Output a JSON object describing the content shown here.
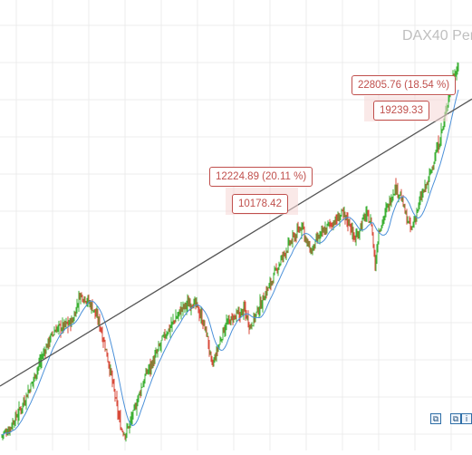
{
  "watermark": "DAX40 Per",
  "chart_data": {
    "type": "line",
    "title": "",
    "xlabel": "",
    "ylabel": "",
    "grid": true,
    "ylim": [
      7000,
      24500
    ],
    "annotations": [
      {
        "text": "12224.89 (20.11 %)",
        "value": 12224.89,
        "pct": 20.11
      },
      {
        "text": "10178.42",
        "value": 10178.42
      },
      {
        "text": "22805.76 (18.54 %)",
        "value": 22805.76,
        "pct": 18.54
      },
      {
        "text": "19239.33",
        "value": 19239.33
      }
    ],
    "trendline": {
      "start": 9500,
      "end": 21500
    },
    "series": [
      {
        "type": "ohlc-ticks",
        "color_up": "#3cb034",
        "color_down": "#d84a3a"
      },
      {
        "type": "moving-average",
        "color": "#4a90d9"
      }
    ],
    "path": [
      [
        0,
        7400
      ],
      [
        10,
        7700
      ],
      [
        22,
        8500
      ],
      [
        34,
        9500
      ],
      [
        44,
        10500
      ],
      [
        54,
        11400
      ],
      [
        62,
        11900
      ],
      [
        70,
        12000
      ],
      [
        80,
        12200
      ],
      [
        88,
        13300
      ],
      [
        94,
        13200
      ],
      [
        102,
        12800
      ],
      [
        110,
        12100
      ],
      [
        117,
        11000
      ],
      [
        124,
        9700
      ],
      [
        130,
        8400
      ],
      [
        134,
        7700
      ],
      [
        138,
        7500
      ],
      [
        146,
        8200
      ],
      [
        154,
        9200
      ],
      [
        162,
        10100
      ],
      [
        170,
        10600
      ],
      [
        180,
        11500
      ],
      [
        190,
        12100
      ],
      [
        200,
        12700
      ],
      [
        210,
        13000
      ],
      [
        216,
        12900
      ],
      [
        222,
        12400
      ],
      [
        228,
        11700
      ],
      [
        234,
        10300
      ],
      [
        240,
        11000
      ],
      [
        248,
        12000
      ],
      [
        256,
        12300
      ],
      [
        264,
        12500
      ],
      [
        270,
        12700
      ],
      [
        276,
        12000
      ],
      [
        284,
        12600
      ],
      [
        292,
        13300
      ],
      [
        300,
        13900
      ],
      [
        308,
        14600
      ],
      [
        316,
        15200
      ],
      [
        324,
        15700
      ],
      [
        330,
        16000
      ],
      [
        334,
        16300
      ],
      [
        338,
        15500
      ],
      [
        344,
        15100
      ],
      [
        350,
        15600
      ],
      [
        356,
        15900
      ],
      [
        362,
        16200
      ],
      [
        370,
        16400
      ],
      [
        378,
        16700
      ],
      [
        386,
        16300
      ],
      [
        392,
        15600
      ],
      [
        398,
        16200
      ],
      [
        404,
        16700
      ],
      [
        410,
        16300
      ],
      [
        414,
        14500
      ],
      [
        418,
        16000
      ],
      [
        424,
        16600
      ],
      [
        430,
        17200
      ],
      [
        436,
        17800
      ],
      [
        442,
        17500
      ],
      [
        448,
        16600
      ],
      [
        454,
        16000
      ],
      [
        460,
        16800
      ],
      [
        466,
        17500
      ],
      [
        472,
        18000
      ],
      [
        478,
        18800
      ],
      [
        484,
        19600
      ],
      [
        490,
        20500
      ],
      [
        496,
        21800
      ],
      [
        502,
        22600
      ],
      [
        506,
        22900
      ]
    ]
  }
}
